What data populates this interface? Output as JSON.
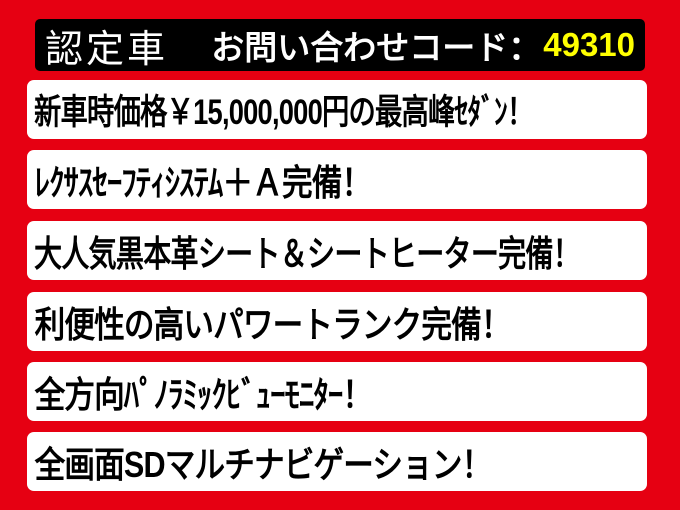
{
  "colors": {
    "background_red": "#e60012",
    "header_bar_black": "#000000",
    "header_text_white": "#ffffff",
    "inquiry_code_yellow": "#ffff00",
    "row_white": "#ffffff",
    "feature_text_black": "#000000"
  },
  "header": {
    "badge_label": "認定車",
    "inquiry_label": "お問い合わせコード：",
    "inquiry_code": "49310"
  },
  "features": [
    "新車時価格￥15,000,000円の最高峰ｾﾀﾞﾝ！",
    "ﾚｸｻｽｾｰﾌﾃｨｼｽﾃﾑ＋Ａ完備！",
    "大人気黒本革シート＆シートヒーター完備！",
    "利便性の高いパワートランク完備！",
    "全方向ﾊﾟﾉﾗﾐｯｸﾋﾞｭｰﾓﾆﾀｰ！",
    "全画面SDマルチナビゲーション！"
  ]
}
